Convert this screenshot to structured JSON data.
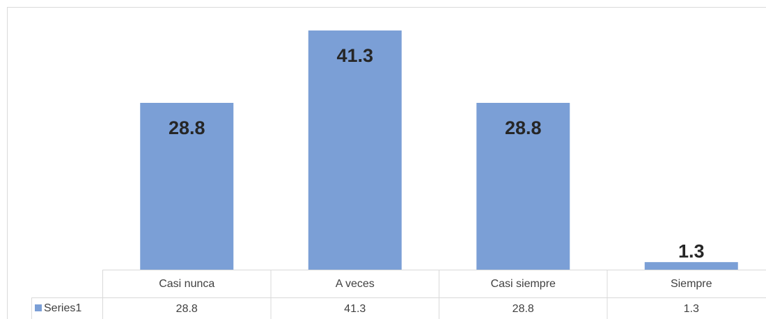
{
  "chart_data": {
    "type": "bar",
    "categories": [
      "Casi nunca",
      "A veces",
      "Casi siempre",
      "Siempre"
    ],
    "series": [
      {
        "name": "Series1",
        "color": "#7b9fd6",
        "values": [
          28.8,
          41.3,
          28.8,
          1.3
        ]
      }
    ],
    "ylim": [
      0,
      45
    ],
    "grid": false
  }
}
